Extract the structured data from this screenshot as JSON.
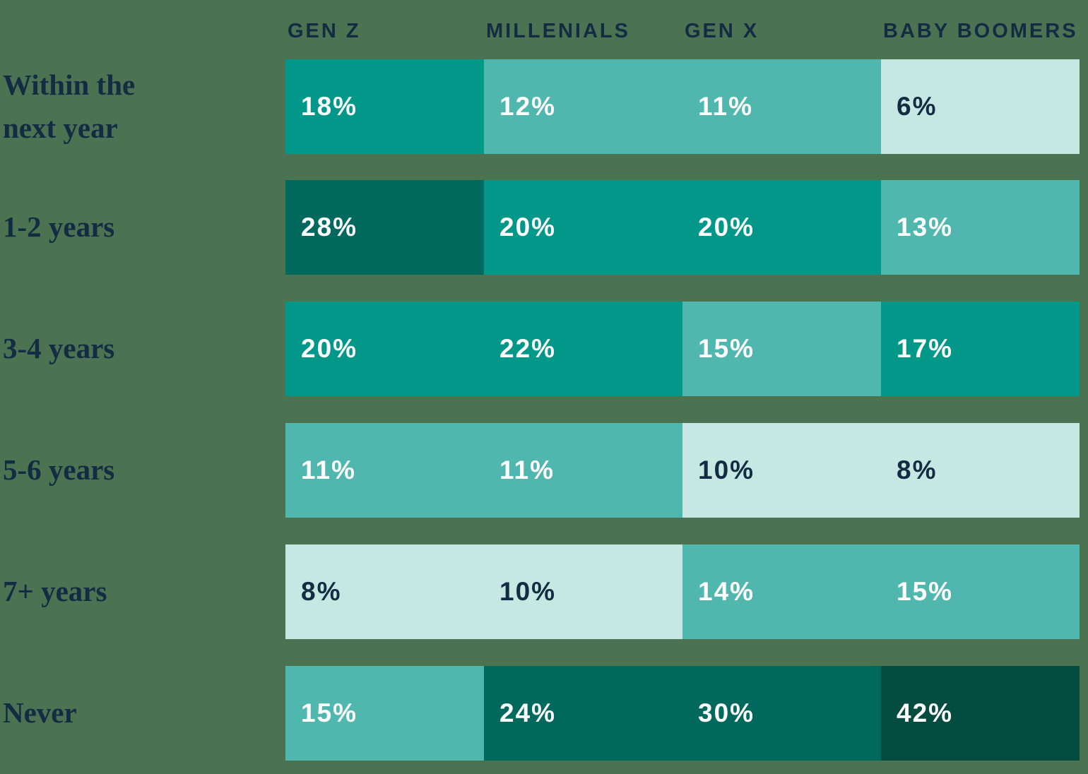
{
  "colors": {
    "background": "#4b7251",
    "navy": "#142c43",
    "white": "#ffffff"
  },
  "chart_data": {
    "type": "heatmap",
    "unit": "%",
    "legend": "none",
    "axes": "none",
    "columns": [
      {
        "label": "GEN Z"
      },
      {
        "label": "MILLENIALS"
      },
      {
        "label": "GEN X"
      },
      {
        "label": "BABY BOOMERS"
      }
    ],
    "rows": [
      {
        "label": "Within the\nnext year",
        "cells": [
          {
            "value": 18,
            "label": "18%"
          },
          {
            "value": 12,
            "label": "12%"
          },
          {
            "value": 11,
            "label": "11%"
          },
          {
            "value": 6,
            "label": "6%"
          }
        ]
      },
      {
        "label": "1-2 years",
        "cells": [
          {
            "value": 28,
            "label": "28%"
          },
          {
            "value": 20,
            "label": "20%"
          },
          {
            "value": 20,
            "label": "20%"
          },
          {
            "value": 13,
            "label": "13%"
          }
        ]
      },
      {
        "label": "3-4 years",
        "cells": [
          {
            "value": 20,
            "label": "20%"
          },
          {
            "value": 22,
            "label": "22%"
          },
          {
            "value": 15,
            "label": "15%"
          },
          {
            "value": 17,
            "label": "17%"
          }
        ]
      },
      {
        "label": "5-6 years",
        "cells": [
          {
            "value": 11,
            "label": "11%"
          },
          {
            "value": 11,
            "label": "11%"
          },
          {
            "value": 10,
            "label": "10%"
          },
          {
            "value": 8,
            "label": "8%"
          }
        ]
      },
      {
        "label": "7+ years",
        "cells": [
          {
            "value": 8,
            "label": "8%"
          },
          {
            "value": 10,
            "label": "10%"
          },
          {
            "value": 14,
            "label": "14%"
          },
          {
            "value": 15,
            "label": "15%"
          }
        ]
      },
      {
        "label": "Never",
        "cells": [
          {
            "value": 15,
            "label": "15%"
          },
          {
            "value": 24,
            "label": "24%"
          },
          {
            "value": 30,
            "label": "30%"
          },
          {
            "value": 42,
            "label": "42%"
          }
        ]
      }
    ],
    "color_scale": {
      "thresholds": [
        10,
        15,
        22,
        33
      ],
      "palette": [
        "#c5e9e2",
        "#4fb7ae",
        "#019889",
        "#00695e",
        "#034c3f"
      ],
      "text_colors": [
        "#142c43",
        "#ffffff",
        "#ffffff",
        "#ffffff",
        "#ffffff"
      ]
    }
  }
}
